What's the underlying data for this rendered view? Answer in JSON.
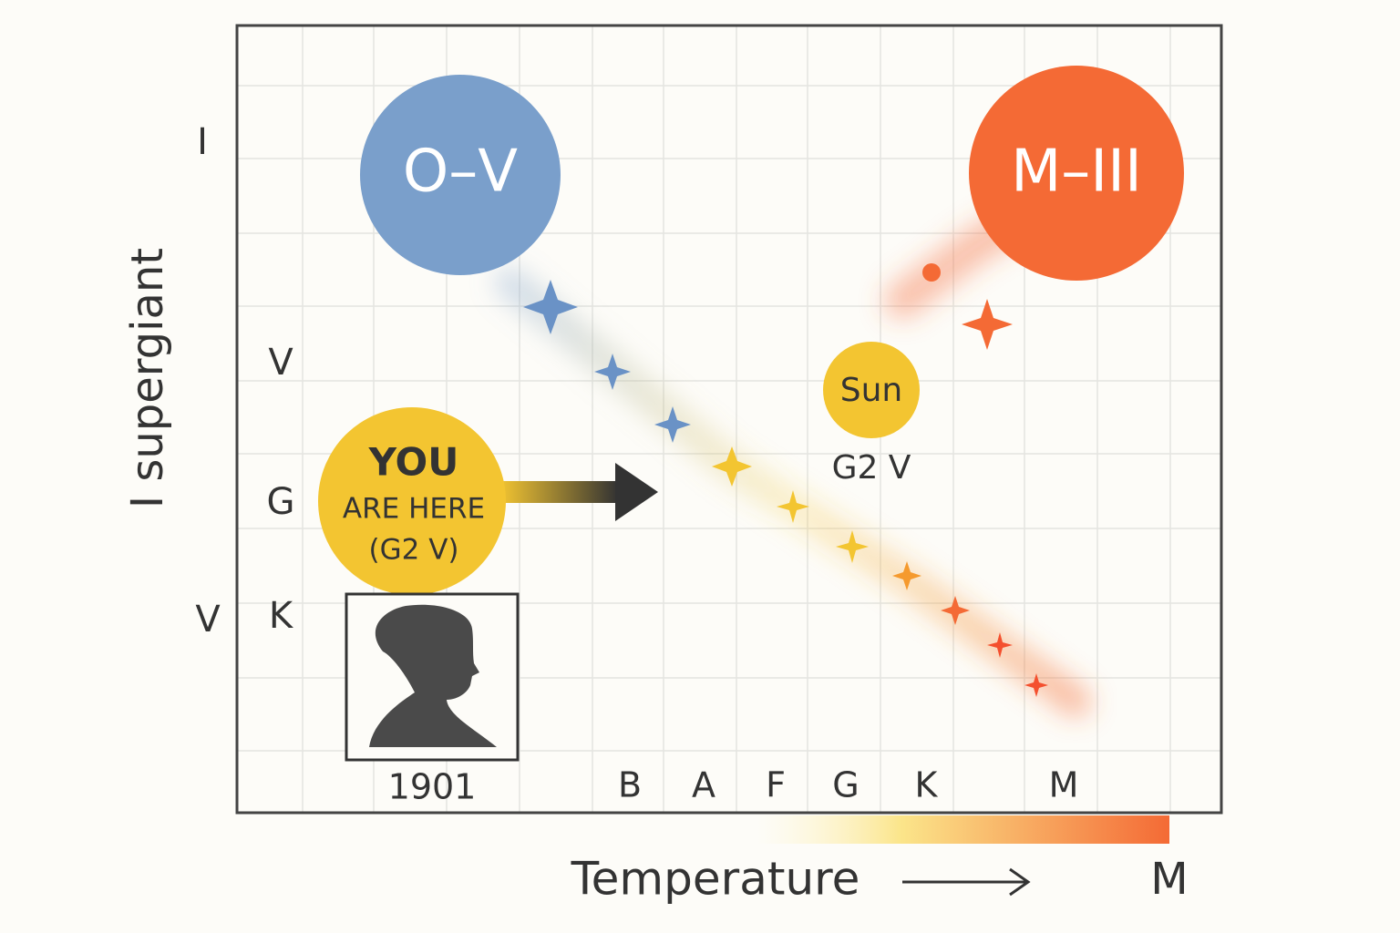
{
  "y_axis_title": "I supergiant",
  "outer_labels": [
    "I",
    "V"
  ],
  "inner_labels": [
    "V",
    "G",
    "K"
  ],
  "x_labels": [
    "B",
    "A",
    "F",
    "G",
    "K",
    "M"
  ],
  "x_axis_title": "Temperature",
  "x_axis_end": "M",
  "nodes": [
    {
      "label": "O–V"
    },
    {
      "label": "M–III"
    },
    {
      "label": "Sun"
    }
  ],
  "sun_class": "G2 V",
  "you_are_here": [
    "YOU",
    "ARE HERE",
    "(G2 V)"
  ],
  "portrait": {
    "year": "1901"
  }
}
